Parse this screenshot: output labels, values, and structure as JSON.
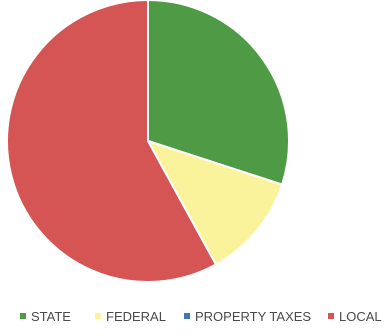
{
  "chart_data": {
    "type": "pie",
    "title": "",
    "categories": [
      "STATE",
      "FEDERAL",
      "PROPERTY TAXES",
      "LOCAL"
    ],
    "values": [
      30,
      12,
      0,
      58
    ],
    "unit": "%",
    "colors": [
      "#4f9a44",
      "#fbf29c",
      "#3f77b6",
      "#d55454"
    ],
    "start_angle_deg": 0,
    "direction": "clockwise",
    "legend_position": "bottom"
  }
}
